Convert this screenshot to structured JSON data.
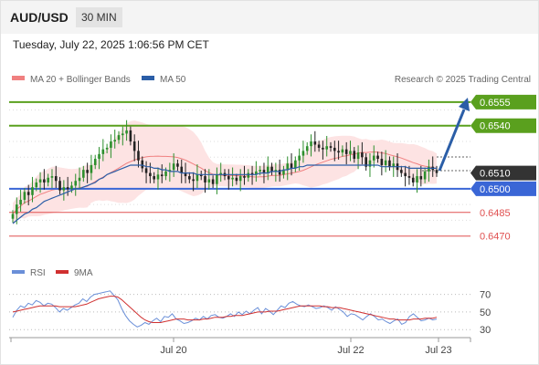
{
  "header": {
    "pair": "AUD/USD",
    "timeframe": "30 MIN"
  },
  "datetime": "Tuesday, July 22, 2025 1:06:56 PM CET",
  "legend": {
    "bb": "MA 20 + Bollinger Bands",
    "ma50": "MA 50",
    "credit": "Research © 2025 Trading Central"
  },
  "rsi_legend": {
    "rsi": "RSI",
    "ma": "9MA"
  },
  "colors": {
    "bb": "#f08080",
    "ma50": "#2b5ea7",
    "green": "#5aa01e",
    "blue": "#3a66d6",
    "red": "#e05050",
    "up": "#2d8f2d",
    "down": "#222222",
    "rsi": "#6a8fd8",
    "rsima": "#d03030"
  },
  "chart_data": [
    {
      "type": "candlestick",
      "title": "AUD/USD 30 MIN",
      "ylim": [
        0.646,
        0.6563
      ],
      "x_labels": [
        "Jul 20",
        "Jul 22",
        "Jul 23"
      ],
      "price_levels": [
        {
          "value": 0.6555,
          "label": "0.6555",
          "role": "target",
          "color": "#5aa01e"
        },
        {
          "value": 0.654,
          "label": "0.6540",
          "role": "resistance",
          "color": "#5aa01e"
        },
        {
          "value": 0.651,
          "label": "0.6510",
          "role": "last price",
          "color": "#333333"
        },
        {
          "value": 0.65,
          "label": "0.6500",
          "role": "pivot",
          "color": "#3a66d6"
        },
        {
          "value": 0.6485,
          "label": "0.6485",
          "role": "support",
          "color": "#e05050"
        },
        {
          "value": 0.647,
          "label": "0.6470",
          "role": "support",
          "color": "#e05050"
        }
      ],
      "close": [
        0.6484,
        0.649,
        0.6493,
        0.6498,
        0.6496,
        0.6501,
        0.6504,
        0.6506,
        0.6504,
        0.6507,
        0.6508,
        0.6505,
        0.6499,
        0.6501,
        0.65,
        0.6502,
        0.6505,
        0.6507,
        0.6512,
        0.651,
        0.6515,
        0.6519,
        0.6522,
        0.6525,
        0.6526,
        0.653,
        0.6531,
        0.6534,
        0.6535,
        0.6537,
        0.653,
        0.6524,
        0.6518,
        0.6513,
        0.651,
        0.6508,
        0.6506,
        0.6509,
        0.6508,
        0.6511,
        0.6512,
        0.6516,
        0.6514,
        0.651,
        0.6508,
        0.6506,
        0.6505,
        0.6509,
        0.6508,
        0.6504,
        0.6506,
        0.6503,
        0.6509,
        0.651,
        0.6508,
        0.6506,
        0.6507,
        0.6505,
        0.6508,
        0.6507,
        0.651,
        0.6509,
        0.6511,
        0.6512,
        0.651,
        0.6514,
        0.6511,
        0.6512,
        0.6509,
        0.6512,
        0.6516,
        0.6513,
        0.6518,
        0.6521,
        0.6524,
        0.6527,
        0.653,
        0.6528,
        0.6526,
        0.6525,
        0.6527,
        0.6526,
        0.6524,
        0.6523,
        0.6525,
        0.6522,
        0.6524,
        0.6519,
        0.6523,
        0.652,
        0.6514,
        0.6518,
        0.6521,
        0.6519,
        0.6515,
        0.6518,
        0.6514,
        0.6516,
        0.6512,
        0.651,
        0.6508,
        0.6507,
        0.6504,
        0.6508,
        0.6506,
        0.6511,
        0.6514,
        0.6512,
        0.651
      ],
      "ma50": [
        0.6478,
        0.648,
        0.6482,
        0.6484,
        0.6485,
        0.6487,
        0.6488,
        0.649,
        0.6492,
        0.6493,
        0.6494,
        0.6495,
        0.6496,
        0.6497,
        0.6498,
        0.6499,
        0.65,
        0.65,
        0.6501,
        0.6502,
        0.6503,
        0.6504,
        0.6506,
        0.6507,
        0.6509,
        0.651,
        0.6511,
        0.6512,
        0.6513,
        0.6514,
        0.6515,
        0.6515,
        0.6515,
        0.6515,
        0.6514,
        0.6514,
        0.6513,
        0.6513,
        0.6512,
        0.6512,
        0.6511,
        0.6511,
        0.6511,
        0.651,
        0.651,
        0.651,
        0.651,
        0.6509,
        0.6509,
        0.6509,
        0.6509,
        0.6509,
        0.6509,
        0.6509,
        0.6509,
        0.6509,
        0.6509,
        0.6509,
        0.6509,
        0.6509,
        0.6509,
        0.6509,
        0.6509,
        0.651,
        0.651,
        0.651,
        0.6511,
        0.6511,
        0.6511,
        0.6512,
        0.6512,
        0.6513,
        0.6513,
        0.6514,
        0.6514,
        0.6515,
        0.6515,
        0.6515,
        0.6515,
        0.6515,
        0.6515,
        0.6515,
        0.6515,
        0.6515,
        0.6515,
        0.6515,
        0.6515,
        0.6515,
        0.6515,
        0.6515,
        0.6515,
        0.6515,
        0.6515,
        0.6515,
        0.6514,
        0.6514,
        0.6514,
        0.6514,
        0.6514,
        0.6514,
        0.6514,
        0.6513,
        0.6513,
        0.6513,
        0.6513,
        0.6513,
        0.6513,
        0.6513,
        0.6513
      ]
    },
    {
      "type": "line",
      "title": "RSI",
      "ylim": [
        24,
        80
      ],
      "ticks": [
        70,
        50,
        30
      ],
      "series": [
        {
          "name": "RSI",
          "values": [
            44,
            52,
            57,
            55,
            60,
            58,
            63,
            61,
            57,
            60,
            59,
            55,
            50,
            54,
            52,
            55,
            58,
            60,
            65,
            62,
            67,
            70,
            71,
            72,
            73,
            74,
            69,
            64,
            54,
            46,
            40,
            36,
            33,
            35,
            38,
            36,
            40,
            43,
            39,
            45,
            44,
            48,
            42,
            40,
            37,
            38,
            40,
            43,
            41,
            45,
            42,
            46,
            47,
            44,
            43,
            45,
            48,
            45,
            50,
            47,
            51,
            48,
            52,
            55,
            48,
            54,
            51,
            47,
            52,
            57,
            55,
            60,
            62,
            59,
            57,
            56,
            58,
            56,
            54,
            55,
            57,
            55,
            52,
            56,
            53,
            50,
            45,
            48,
            47,
            44,
            41,
            45,
            48,
            45,
            41,
            42,
            39,
            37,
            40,
            42,
            36,
            38,
            45,
            48,
            44,
            40,
            41,
            43,
            41,
            42
          ]
        },
        {
          "name": "9MA",
          "values": [
            50,
            51,
            52,
            53,
            54,
            55,
            56,
            57,
            57,
            57,
            57,
            57,
            56,
            56,
            56,
            56,
            56,
            57,
            58,
            59,
            61,
            63,
            65,
            66,
            67,
            68,
            68,
            67,
            64,
            60,
            56,
            52,
            48,
            44,
            41,
            39,
            38,
            38,
            38,
            39,
            40,
            41,
            42,
            42,
            42,
            41,
            41,
            41,
            41,
            42,
            42,
            43,
            44,
            44,
            44,
            45,
            45,
            46,
            46,
            46,
            47,
            48,
            49,
            50,
            50,
            50,
            51,
            51,
            51,
            52,
            53,
            54,
            55,
            56,
            57,
            57,
            57,
            57,
            57,
            57,
            56,
            56,
            55,
            55,
            55,
            54,
            53,
            52,
            51,
            50,
            49,
            48,
            47,
            46,
            45,
            44,
            43,
            42,
            42,
            41,
            41,
            41,
            41,
            42,
            42,
            42,
            43,
            43,
            43,
            44
          ]
        }
      ]
    }
  ]
}
